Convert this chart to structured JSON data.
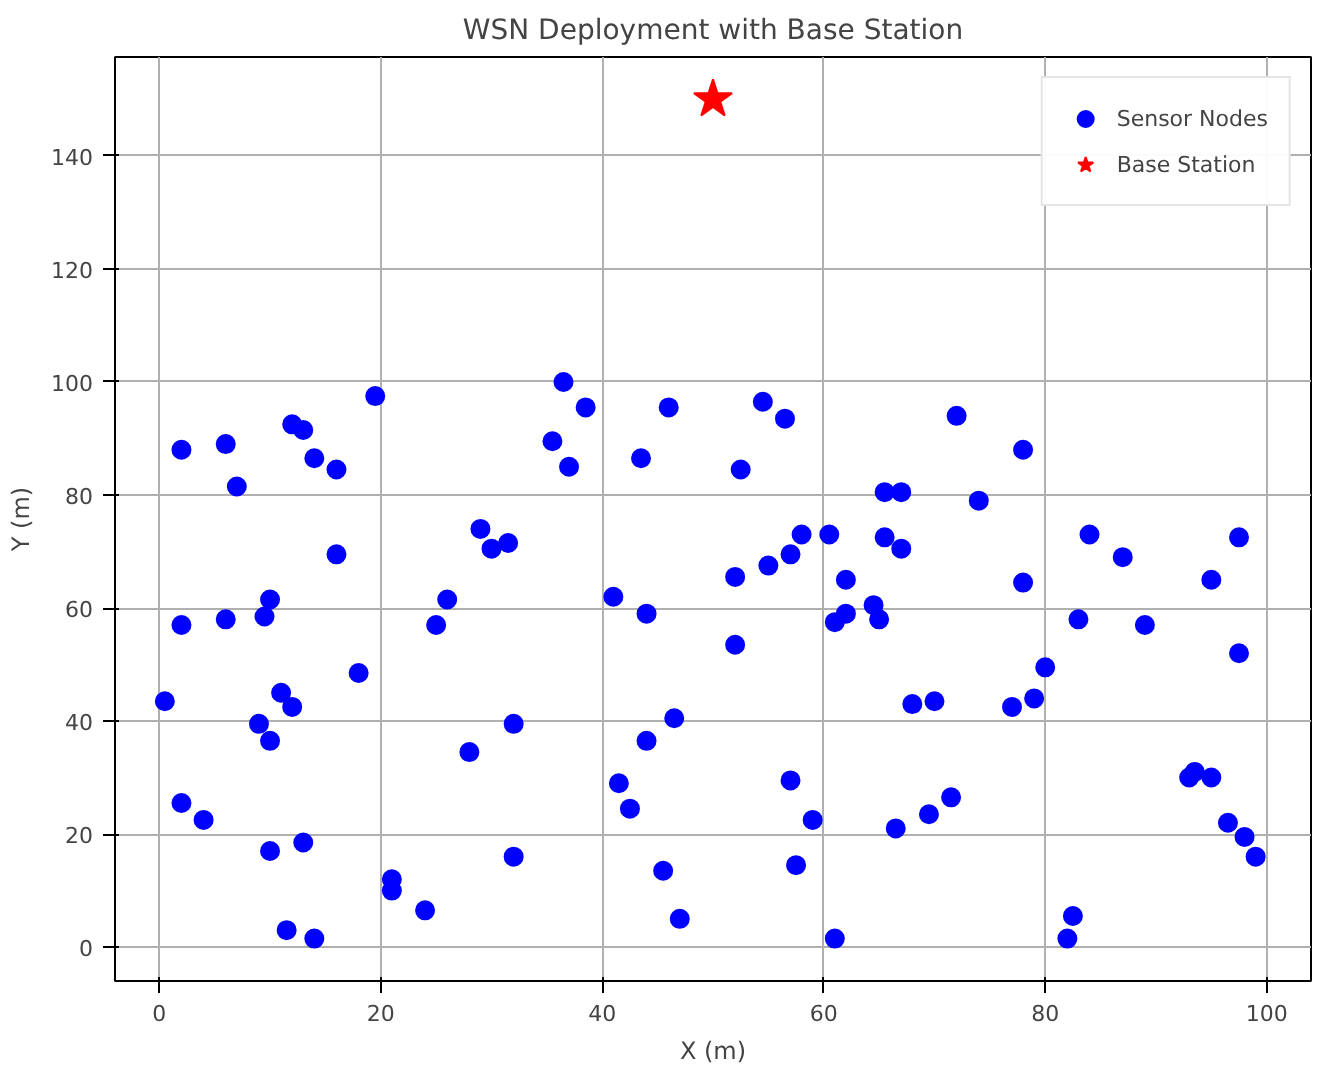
{
  "chart_data": {
    "type": "scatter",
    "title": "WSN Deployment with Base Station",
    "xlabel": "X (m)",
    "ylabel": "Y (m)",
    "xlim": [
      -4,
      104
    ],
    "ylim": [
      -6,
      157.5
    ],
    "xticks": [
      0,
      20,
      40,
      60,
      80,
      100
    ],
    "yticks": [
      0,
      20,
      40,
      60,
      80,
      100,
      120,
      140
    ],
    "grid": true,
    "legend": "top right",
    "series": [
      {
        "name": "Sensor Nodes",
        "color": "#0000ff",
        "marker": "circle",
        "x": [
          0.5,
          2,
          2,
          2,
          4,
          6,
          6,
          7,
          9,
          9.5,
          10,
          10,
          10,
          11,
          12,
          12,
          11.5,
          13,
          13,
          14,
          14,
          16,
          16,
          18,
          19.5,
          21,
          21,
          24,
          25,
          26,
          28,
          29,
          30,
          31.5,
          32,
          32,
          35.5,
          36.5,
          37,
          38.5,
          41,
          41.5,
          42.5,
          43.5,
          44,
          44,
          45.5,
          46,
          46.5,
          47,
          52,
          52,
          52.5,
          54.5,
          55,
          56.5,
          57,
          57,
          57.5,
          58,
          59,
          60.5,
          61,
          61,
          62,
          62,
          64.5,
          65,
          65.5,
          65.5,
          67,
          66.5,
          67,
          68,
          69.5,
          70,
          71.5,
          72,
          74,
          77,
          78,
          78,
          79,
          80,
          82,
          82.5,
          83,
          84,
          87,
          89,
          93,
          93.5,
          95,
          95,
          96.5,
          97.5,
          97.5,
          98,
          99
        ],
        "values": [
          43.5,
          88,
          57,
          25.5,
          22.5,
          89,
          58,
          81.5,
          39.5,
          58.5,
          36.5,
          17,
          61.5,
          45,
          92.5,
          42.5,
          3,
          91.5,
          18.5,
          86.5,
          1.5,
          84.5,
          69.5,
          48.5,
          97.5,
          12,
          10,
          6.5,
          57,
          61.5,
          34.5,
          74,
          70.5,
          71.5,
          39.5,
          16,
          89.5,
          100,
          85,
          95.5,
          62,
          29,
          24.5,
          86.5,
          59,
          36.5,
          13.5,
          95.5,
          40.5,
          5,
          65.5,
          53.5,
          84.5,
          96.5,
          67.5,
          93.5,
          69.5,
          29.5,
          14.5,
          73,
          22.5,
          73,
          1.5,
          57.5,
          59,
          65,
          60.5,
          58,
          80.5,
          72.5,
          80.5,
          21,
          70.5,
          43,
          23.5,
          43.5,
          26.5,
          94,
          79,
          42.5,
          88,
          64.5,
          44,
          49.5,
          1.5,
          5.5,
          58,
          73,
          69,
          57,
          30,
          31,
          65,
          30,
          22,
          72.5,
          52,
          19.5,
          16
        ]
      },
      {
        "name": "Base Station",
        "color": "#ff0000",
        "marker": "star",
        "x": [
          50
        ],
        "values": [
          150
        ]
      }
    ]
  }
}
